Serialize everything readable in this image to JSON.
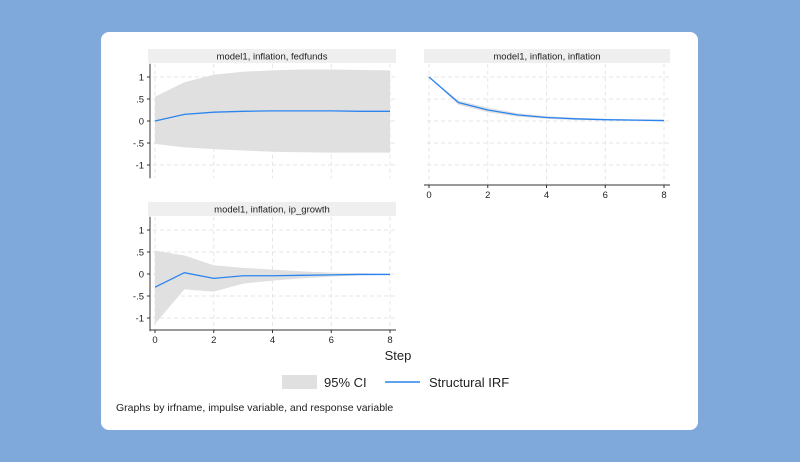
{
  "chart_data": [
    {
      "type": "line",
      "title": "model1, inflation, fedfunds",
      "x": [
        0,
        1,
        2,
        3,
        4,
        5,
        6,
        7,
        8
      ],
      "series": [
        {
          "name": "Structural IRF",
          "values": [
            0,
            0.15,
            0.2,
            0.22,
            0.23,
            0.23,
            0.23,
            0.22,
            0.22
          ]
        },
        {
          "name": "95% CI",
          "lower": [
            -0.52,
            -0.6,
            -0.64,
            -0.67,
            -0.7,
            -0.71,
            -0.72,
            -0.72,
            -0.72
          ],
          "upper": [
            0.55,
            0.88,
            1.05,
            1.12,
            1.15,
            1.17,
            1.17,
            1.16,
            1.15
          ]
        }
      ],
      "yticks": [
        "-1",
        "-.5",
        "0",
        ".5",
        "1"
      ],
      "xticks": [],
      "ylim": [
        -1.3,
        1.3
      ],
      "xlim": [
        0,
        8
      ]
    },
    {
      "type": "line",
      "title": "model1, inflation, inflation",
      "x": [
        0,
        1,
        2,
        3,
        4,
        5,
        6,
        7,
        8
      ],
      "series": [
        {
          "name": "Structural IRF",
          "values": [
            1,
            0.42,
            0.25,
            0.14,
            0.08,
            0.05,
            0.03,
            0.02,
            0.01
          ]
        },
        {
          "name": "95% CI",
          "lower": [
            1,
            0.37,
            0.2,
            0.1,
            0.05,
            0.02,
            0.01,
            0,
            -0.01
          ],
          "upper": [
            1,
            0.47,
            0.3,
            0.18,
            0.11,
            0.07,
            0.05,
            0.04,
            0.03
          ]
        }
      ],
      "yticks": [],
      "xticks": [
        "0",
        "2",
        "4",
        "6",
        "8"
      ],
      "ylim": [
        -1.3,
        1.3
      ],
      "xlim": [
        0,
        8
      ]
    },
    {
      "type": "line",
      "title": "model1, inflation, ip_growth",
      "x": [
        0,
        1,
        2,
        3,
        4,
        5,
        6,
        7,
        8
      ],
      "series": [
        {
          "name": "Structural IRF",
          "values": [
            -0.3,
            0.03,
            -0.1,
            -0.04,
            -0.04,
            -0.03,
            -0.02,
            -0.01,
            -0.01
          ]
        },
        {
          "name": "95% CI",
          "lower": [
            -1.13,
            -0.35,
            -0.4,
            -0.22,
            -0.15,
            -0.1,
            -0.06,
            -0.03,
            -0.02
          ],
          "upper": [
            0.53,
            0.42,
            0.2,
            0.14,
            0.1,
            0.06,
            0.03,
            0.02,
            0.01
          ]
        }
      ],
      "yticks": [
        "-1",
        "-.5",
        "0",
        ".5",
        "1"
      ],
      "xticks": [
        "0",
        "2",
        "4",
        "6",
        "8"
      ],
      "ylim": [
        -1.3,
        1.3
      ],
      "xlim": [
        0,
        8
      ]
    }
  ],
  "xlabel": "Step",
  "legend": {
    "ci_label": "95% CI",
    "irf_label": "Structural IRF",
    "placement": "bottom"
  },
  "note": "Graphs by irfname, impulse variable, and response variable",
  "colors": {
    "irf": "#2a84f0",
    "ci": "#e0e0e0",
    "strip": "#efefef",
    "background": "#7fa9db"
  }
}
